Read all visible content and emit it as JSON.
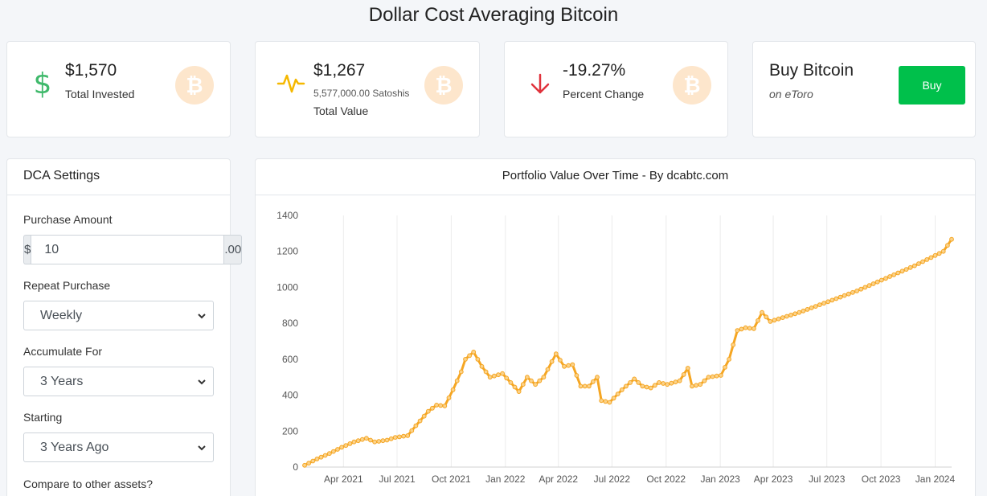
{
  "page": {
    "title": "Dollar Cost Averaging Bitcoin"
  },
  "stats": {
    "invested": {
      "value": "$1,570",
      "label": "Total Invested"
    },
    "value": {
      "value": "$1,267",
      "satoshis": "5,577,000.00 Satoshis",
      "label": "Total Value"
    },
    "change": {
      "value": "-19.27%",
      "label": "Percent Change"
    },
    "buy": {
      "title": "Buy Bitcoin",
      "subtitle": "on eToro",
      "button": "Buy"
    }
  },
  "colors": {
    "accent": "#f5a623",
    "buy": "#00c04b",
    "up": "#3fb96b",
    "down": "#e0323c",
    "badge": "#fde6cc"
  },
  "settings": {
    "header": "DCA Settings",
    "purchase_amount_label": "Purchase Amount",
    "currency_prefix": "$",
    "purchase_amount": "10",
    "cents_suffix": ".00",
    "repeat_label": "Repeat Purchase",
    "repeat_value": "Weekly",
    "accumulate_label": "Accumulate For",
    "accumulate_value": "3 Years",
    "starting_label": "Starting",
    "starting_value": "3 Years Ago",
    "compare_label": "Compare to other assets?"
  },
  "chart_panel": {
    "title": "Portfolio Value Over Time - By dcabtc.com"
  },
  "chart_data": {
    "type": "line",
    "title": "Portfolio Value Over Time - By dcabtc.com",
    "ylim": [
      0,
      1400
    ],
    "y_ticks": [
      "0",
      "200",
      "400",
      "600",
      "800",
      "1000",
      "1200",
      "1400"
    ],
    "x_ticks": [
      "Apr 2021",
      "Jul 2021",
      "Oct 2021",
      "Jan 2022",
      "Apr 2022",
      "Jul 2022",
      "Oct 2022",
      "Jan 2023",
      "Apr 2023",
      "Jul 2023",
      "Oct 2023",
      "Jan 2024"
    ],
    "x_range": [
      "2021-01-25",
      "2024-01-29"
    ],
    "grid": true,
    "series": [
      {
        "color": "#f5a623",
        "points": [
          [
            "2021-01-25",
            10
          ],
          [
            "2021-02-15",
            45
          ],
          [
            "2021-03-08",
            75
          ],
          [
            "2021-03-29",
            110
          ],
          [
            "2021-04-19",
            140
          ],
          [
            "2021-05-10",
            160
          ],
          [
            "2021-05-24",
            140
          ],
          [
            "2021-06-14",
            150
          ],
          [
            "2021-06-28",
            165
          ],
          [
            "2021-07-19",
            175
          ],
          [
            "2021-08-02",
            230
          ],
          [
            "2021-08-23",
            310
          ],
          [
            "2021-09-06",
            345
          ],
          [
            "2021-09-20",
            340
          ],
          [
            "2021-10-04",
            430
          ],
          [
            "2021-10-18",
            530
          ],
          [
            "2021-10-25",
            600
          ],
          [
            "2021-11-08",
            640
          ],
          [
            "2021-11-22",
            560
          ],
          [
            "2021-12-06",
            500
          ],
          [
            "2021-12-27",
            520
          ],
          [
            "2022-01-10",
            470
          ],
          [
            "2022-01-24",
            420
          ],
          [
            "2022-02-07",
            500
          ],
          [
            "2022-02-21",
            460
          ],
          [
            "2022-03-07",
            500
          ],
          [
            "2022-03-28",
            630
          ],
          [
            "2022-04-11",
            560
          ],
          [
            "2022-04-25",
            570
          ],
          [
            "2022-05-09",
            450
          ],
          [
            "2022-05-23",
            450
          ],
          [
            "2022-06-06",
            500
          ],
          [
            "2022-06-13",
            370
          ],
          [
            "2022-06-27",
            360
          ],
          [
            "2022-07-18",
            430
          ],
          [
            "2022-08-08",
            490
          ],
          [
            "2022-08-22",
            450
          ],
          [
            "2022-09-05",
            440
          ],
          [
            "2022-09-19",
            470
          ],
          [
            "2022-10-03",
            460
          ],
          [
            "2022-10-24",
            480
          ],
          [
            "2022-11-07",
            550
          ],
          [
            "2022-11-14",
            450
          ],
          [
            "2022-11-28",
            460
          ],
          [
            "2022-12-12",
            500
          ],
          [
            "2023-01-02",
            510
          ],
          [
            "2023-01-16",
            600
          ],
          [
            "2023-01-30",
            760
          ],
          [
            "2023-02-13",
            775
          ],
          [
            "2023-02-27",
            770
          ],
          [
            "2023-03-13",
            860
          ],
          [
            "2023-03-27",
            810
          ],
          [
            "2023-05-15",
            860
          ],
          [
            "2023-07-03",
            920
          ],
          [
            "2023-08-21",
            980
          ],
          [
            "2023-10-09",
            1050
          ],
          [
            "2023-11-27",
            1120
          ],
          [
            "2024-01-15",
            1200
          ],
          [
            "2024-01-29",
            1267
          ]
        ]
      }
    ]
  }
}
